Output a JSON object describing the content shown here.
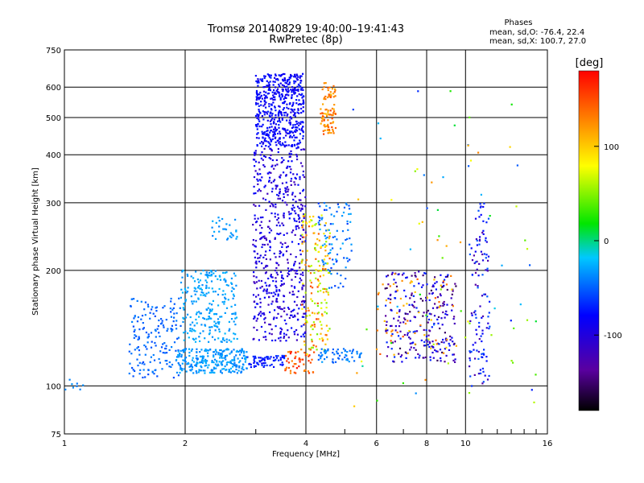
{
  "chart_data": {
    "type": "scatter",
    "title": "Tromsø 20140829 19:40:00–19:41:43",
    "subtitle": "RwPretec (8p)",
    "xlabel": "Frequency [MHz]",
    "ylabel": "Stationary phase Virtual Height [km]",
    "x_scale": "log",
    "y_scale": "log",
    "xlim": [
      1,
      16
    ],
    "ylim": [
      75,
      750
    ],
    "x_ticks": [
      1,
      2,
      4,
      6,
      8,
      10,
      16
    ],
    "y_ticks": [
      75,
      100,
      200,
      300,
      400,
      500,
      600,
      750
    ],
    "grid": true,
    "phase_info": {
      "title": "Phases",
      "line1": "mean, sd,O: -76.4, 22.4",
      "line2": "mean, sd,X: 100.7, 27.0"
    },
    "colorbar": {
      "label": "[deg]",
      "range": [
        -180,
        180
      ],
      "ticks": [
        100,
        0,
        -100
      ]
    },
    "clusters": [
      {
        "x": [
          1.0,
          1.12
        ],
        "y": [
          97,
          104
        ],
        "n": 8,
        "phase": -45,
        "spread": 10
      },
      {
        "x": [
          1.45,
          1.95
        ],
        "y": [
          105,
          170
        ],
        "n": 170,
        "phase": -60,
        "spread": 12
      },
      {
        "x": [
          1.9,
          2.85
        ],
        "y": [
          108,
          125
        ],
        "n": 260,
        "phase": -40,
        "spread": 12
      },
      {
        "x": [
          1.95,
          2.7
        ],
        "y": [
          130,
          200
        ],
        "n": 240,
        "phase": -35,
        "spread": 10
      },
      {
        "x": [
          2.3,
          2.7
        ],
        "y": [
          240,
          275
        ],
        "n": 28,
        "phase": -40,
        "spread": 10
      },
      {
        "x": [
          2.85,
          3.55
        ],
        "y": [
          112,
          120
        ],
        "n": 70,
        "phase": -90,
        "spread": 15
      },
      {
        "x": [
          2.95,
          4.0
        ],
        "y": [
          130,
          420
        ],
        "n": 560,
        "phase": -112,
        "spread": 18
      },
      {
        "x": [
          3.0,
          3.95
        ],
        "y": [
          420,
          650
        ],
        "n": 520,
        "phase": -100,
        "spread": 12
      },
      {
        "x": [
          3.55,
          4.2
        ],
        "y": [
          108,
          125
        ],
        "n": 55,
        "phase": 150,
        "spread": 25
      },
      {
        "x": [
          3.9,
          4.6
        ],
        "y": [
          120,
          280
        ],
        "n": 180,
        "phase": 95,
        "spread": 60
      },
      {
        "x": [
          4.35,
          4.75
        ],
        "y": [
          450,
          620
        ],
        "n": 90,
        "phase": 130,
        "spread": 25
      },
      {
        "x": [
          4.3,
          5.5
        ],
        "y": [
          115,
          125
        ],
        "n": 60,
        "phase": -50,
        "spread": 15
      },
      {
        "x": [
          4.3,
          5.2
        ],
        "y": [
          180,
          300
        ],
        "n": 90,
        "phase": -55,
        "spread": 25
      },
      {
        "x": [
          6.3,
          9.5
        ],
        "y": [
          115,
          200
        ],
        "n": 260,
        "phase": -120,
        "spread": 40
      },
      {
        "x": [
          6.0,
          9.5
        ],
        "y": [
          120,
          200
        ],
        "n": 60,
        "phase": 120,
        "spread": 30
      },
      {
        "x": [
          10.2,
          11.5
        ],
        "y": [
          100,
          300
        ],
        "n": 120,
        "phase": -100,
        "spread": 40
      },
      {
        "x": [
          5.0,
          15.0
        ],
        "y": [
          85,
          650
        ],
        "n": 80,
        "phase": 20,
        "spread": 110
      }
    ]
  }
}
